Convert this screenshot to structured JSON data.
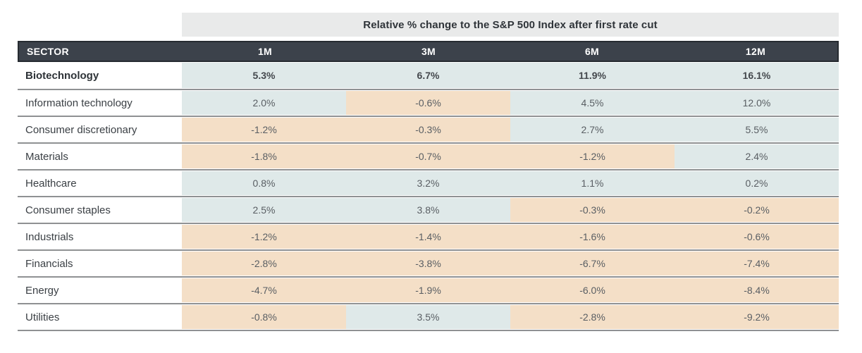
{
  "title": "Relative % change to the S&P 500 Index after first rate cut",
  "chart_data": {
    "type": "table",
    "title": "Relative % change to the S&P 500 Index after first rate cut",
    "columns": [
      "SECTOR",
      "1M",
      "3M",
      "6M",
      "12M"
    ],
    "rows": [
      {
        "sector": "Biotechnology",
        "values": [
          "5.3%",
          "6.7%",
          "11.9%",
          "16.1%"
        ],
        "emphasis": true
      },
      {
        "sector": "Information technology",
        "values": [
          "2.0%",
          "-0.6%",
          "4.5%",
          "12.0%"
        ],
        "emphasis": false
      },
      {
        "sector": "Consumer discretionary",
        "values": [
          "-1.2%",
          "-0.3%",
          "2.7%",
          "5.5%"
        ],
        "emphasis": false
      },
      {
        "sector": "Materials",
        "values": [
          "-1.8%",
          "-0.7%",
          "-1.2%",
          "2.4%"
        ],
        "emphasis": false
      },
      {
        "sector": "Healthcare",
        "values": [
          "0.8%",
          "3.2%",
          "1.1%",
          "0.2%"
        ],
        "emphasis": false
      },
      {
        "sector": "Consumer staples",
        "values": [
          "2.5%",
          "3.8%",
          "-0.3%",
          "-0.2%"
        ],
        "emphasis": false
      },
      {
        "sector": "Industrials",
        "values": [
          "-1.2%",
          "-1.4%",
          "-1.6%",
          "-0.6%"
        ],
        "emphasis": false
      },
      {
        "sector": "Financials",
        "values": [
          "-2.8%",
          "-3.8%",
          "-6.7%",
          "-7.4%"
        ],
        "emphasis": false
      },
      {
        "sector": "Energy",
        "values": [
          "-4.7%",
          "-1.9%",
          "-6.0%",
          "-8.4%"
        ],
        "emphasis": false
      },
      {
        "sector": "Utilities",
        "values": [
          "-0.8%",
          "3.5%",
          "-2.8%",
          "-9.2%"
        ],
        "emphasis": false
      }
    ],
    "legend": {
      "positive_cell_color": "#dfe9e9",
      "negative_cell_color": "#f4dfc7"
    },
    "colors": {
      "header_bg": "#3c424b",
      "header_text": "#ffffff",
      "title_band_bg": "#e9eaea",
      "row_line": "#8f9193"
    }
  }
}
